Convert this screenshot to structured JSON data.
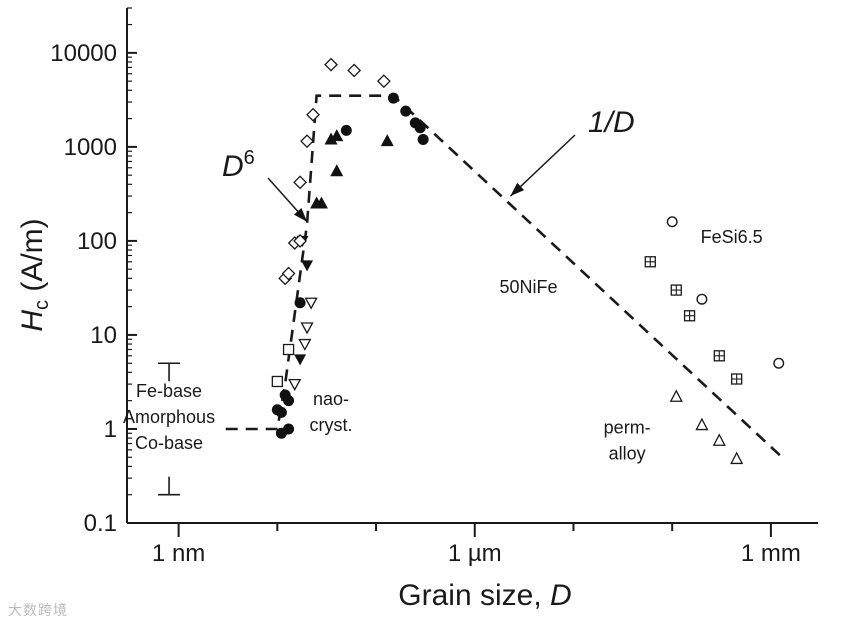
{
  "chart_data": {
    "type": "scatter",
    "xlabel": "Grain size, D",
    "ylabel": "Hc (A/m)",
    "xscale": "log",
    "yscale": "log",
    "xlim_nm": [
      0.3,
      3000000
    ],
    "ylim": [
      0.1,
      30000
    ],
    "xticks": [
      {
        "value_nm": 1,
        "label": "1 nm"
      },
      {
        "value_nm": 1000,
        "label": "1 µm"
      },
      {
        "value_nm": 1000000,
        "label": "1 mm"
      }
    ],
    "yticks": [
      {
        "value": 0.1,
        "label": "0.1"
      },
      {
        "value": 1,
        "label": "1"
      },
      {
        "value": 10,
        "label": "10"
      },
      {
        "value": 100,
        "label": "100"
      },
      {
        "value": 1000,
        "label": "1000"
      },
      {
        "value": 10000,
        "label": "10000"
      }
    ],
    "trend_line": [
      {
        "x": 3,
        "y": 1
      },
      {
        "x": 10,
        "y": 1
      },
      {
        "x": 12,
        "y": 3
      },
      {
        "x": 20,
        "y": 150
      },
      {
        "x": 25,
        "y": 3500
      },
      {
        "x": 150,
        "y": 3500
      },
      {
        "x": 1300000,
        "y": 0.5
      }
    ],
    "series": [
      {
        "marker": "filled-circle",
        "points": [
          {
            "x": 10,
            "y": 1.6
          },
          {
            "x": 11,
            "y": 1.5
          },
          {
            "x": 12,
            "y": 2.3
          },
          {
            "x": 13,
            "y": 2.0
          },
          {
            "x": 11,
            "y": 0.9
          },
          {
            "x": 13,
            "y": 1.0
          },
          {
            "x": 17,
            "y": 22
          },
          {
            "x": 50,
            "y": 1500
          },
          {
            "x": 150,
            "y": 3300
          },
          {
            "x": 200,
            "y": 2400
          },
          {
            "x": 250,
            "y": 1800
          },
          {
            "x": 280,
            "y": 1600
          },
          {
            "x": 300,
            "y": 1200
          }
        ]
      },
      {
        "marker": "filled-triangle-up",
        "points": [
          {
            "x": 25,
            "y": 250
          },
          {
            "x": 28,
            "y": 250
          },
          {
            "x": 35,
            "y": 1200
          },
          {
            "x": 40,
            "y": 1300
          },
          {
            "x": 40,
            "y": 550
          },
          {
            "x": 130,
            "y": 1150
          }
        ]
      },
      {
        "marker": "filled-triangle-down",
        "points": [
          {
            "x": 18,
            "y": 100
          },
          {
            "x": 20,
            "y": 55
          },
          {
            "x": 17,
            "y": 5.5
          }
        ]
      },
      {
        "marker": "open-triangle-down",
        "points": [
          {
            "x": 22,
            "y": 22
          },
          {
            "x": 20,
            "y": 12
          },
          {
            "x": 19,
            "y": 8
          },
          {
            "x": 15,
            "y": 3
          }
        ]
      },
      {
        "marker": "open-diamond",
        "points": [
          {
            "x": 12,
            "y": 40
          },
          {
            "x": 13,
            "y": 45
          },
          {
            "x": 15,
            "y": 95
          },
          {
            "x": 17,
            "y": 100
          },
          {
            "x": 17,
            "y": 420
          },
          {
            "x": 20,
            "y": 1150
          },
          {
            "x": 23,
            "y": 2200
          },
          {
            "x": 35,
            "y": 7500
          },
          {
            "x": 60,
            "y": 6500
          },
          {
            "x": 120,
            "y": 5000
          }
        ]
      },
      {
        "marker": "open-square",
        "points": [
          {
            "x": 10,
            "y": 3.2
          },
          {
            "x": 13,
            "y": 7
          }
        ]
      },
      {
        "marker": "open-circle",
        "label": "FeSi6.5",
        "points": [
          {
            "x": 100000,
            "y": 160
          },
          {
            "x": 200000,
            "y": 24
          },
          {
            "x": 1200000,
            "y": 5
          }
        ]
      },
      {
        "marker": "boxed-plus",
        "label": "50NiFe",
        "points": [
          {
            "x": 60000,
            "y": 60
          },
          {
            "x": 110000,
            "y": 30
          },
          {
            "x": 150000,
            "y": 16
          },
          {
            "x": 300000,
            "y": 6
          },
          {
            "x": 450000,
            "y": 3.4
          }
        ]
      },
      {
        "marker": "open-triangle-up",
        "label": "perm-alloy",
        "points": [
          {
            "x": 110000,
            "y": 2.2
          },
          {
            "x": 200000,
            "y": 1.1
          },
          {
            "x": 300000,
            "y": 0.75
          },
          {
            "x": 450000,
            "y": 0.48
          }
        ]
      }
    ],
    "amorphous_range": {
      "x_nm": 0.8,
      "y_top": 5,
      "y_bottom": 0.2
    },
    "annotations": [
      {
        "text": "Fe-base",
        "x_nm": 0.8,
        "y": 2.2,
        "lines": [
          "Fe-base",
          "Amorphous",
          "Co-base"
        ]
      },
      {
        "text": "nao-cryst.",
        "x_nm": 35,
        "y": 1.8,
        "lines": [
          "nao-",
          "cryst."
        ]
      },
      {
        "text": "50NiFe",
        "x_nm": 3500,
        "y": 28
      },
      {
        "text": "FeSi6.5",
        "x_nm": 400000,
        "y": 95
      },
      {
        "text": "perm-alloy",
        "x_nm": 35000,
        "y": 0.9,
        "lines": [
          "perm-",
          "alloy"
        ]
      },
      {
        "text": "D6",
        "arrow_to": {
          "x": 20,
          "y": 160
        }
      },
      {
        "text": "1/D",
        "arrow_to": {
          "x": 2300,
          "y": 300
        }
      }
    ]
  },
  "labels": {
    "y_axis_main": "H",
    "y_axis_sub": "c",
    "y_axis_unit": " (A/m)",
    "x_axis_main": "Grain size, ",
    "x_axis_var": "D",
    "d6_main": "D",
    "d6_exp": "6",
    "inv_d": "1/D",
    "watermark": "大数跨境"
  }
}
